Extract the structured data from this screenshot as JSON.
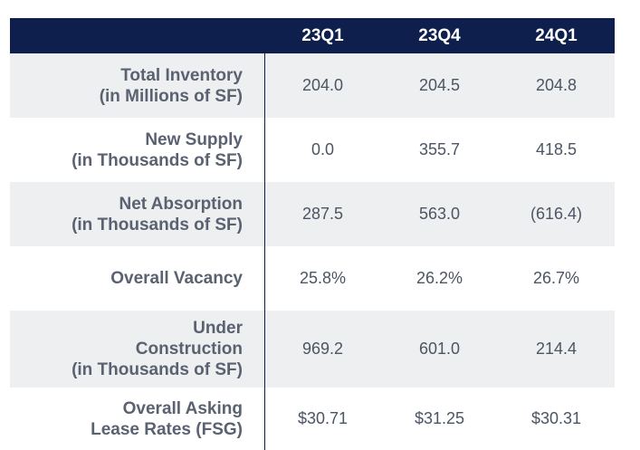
{
  "columns": [
    "23Q1",
    "23Q4",
    "24Q1"
  ],
  "rows": [
    {
      "label": [
        "Total Inventory",
        "(in Millions of SF)"
      ],
      "values": [
        "204.0",
        "204.5",
        "204.8"
      ],
      "shaded": true
    },
    {
      "label": [
        "New Supply",
        "(in Thousands of SF)"
      ],
      "values": [
        "0.0",
        "355.7",
        "418.5"
      ],
      "shaded": false
    },
    {
      "label": [
        "Net Absorption",
        "(in Thousands of SF)"
      ],
      "values": [
        "287.5",
        "563.0",
        "(616.4)"
      ],
      "shaded": true
    },
    {
      "label": [
        "Overall Vacancy"
      ],
      "values": [
        "25.8%",
        "26.2%",
        "26.7%"
      ],
      "shaded": false
    },
    {
      "label": [
        "Under",
        "Construction",
        "(in Thousands of SF)"
      ],
      "values": [
        "969.2",
        "601.0",
        "214.4"
      ],
      "shaded": true
    },
    {
      "label": [
        "Overall Asking",
        "Lease Rates (FSG)"
      ],
      "values": [
        "$30.71",
        "$31.25",
        "$30.31"
      ],
      "shaded": false
    }
  ],
  "colors": {
    "header_bg": "#0e1f4d",
    "row_shade": "#eeeff1",
    "label_text": "#5a6170",
    "value_text": "#4b5563"
  }
}
